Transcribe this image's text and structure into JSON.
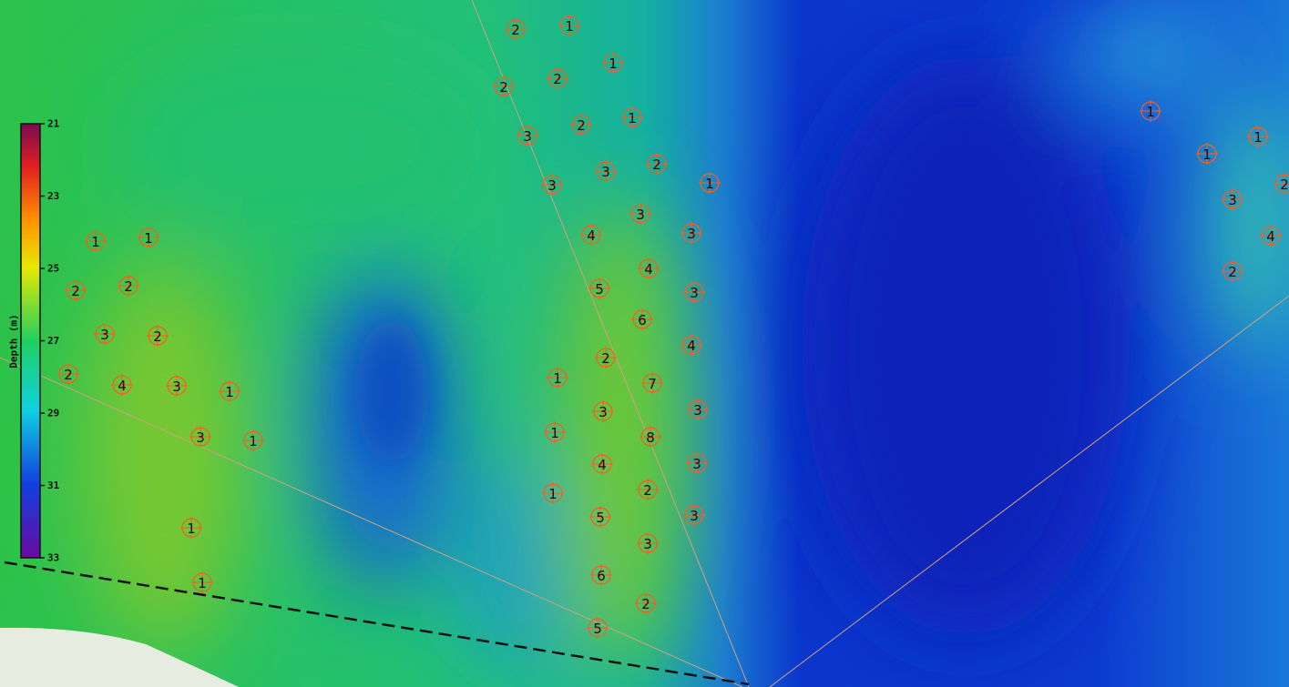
{
  "colorbar": {
    "title": "Depth (m)",
    "range": [
      21,
      33
    ],
    "ticks": [
      21,
      23,
      25,
      27,
      29,
      31,
      33
    ]
  },
  "markers": [
    "1",
    "1",
    "2",
    "2",
    "3",
    "2",
    "2",
    "4",
    "3",
    "1",
    "3",
    "1",
    "1",
    "1",
    "2",
    "1",
    "1",
    "2",
    "2",
    "1",
    "2",
    "3",
    "2",
    "3",
    "3",
    "1",
    "3",
    "4",
    "3",
    "4",
    "5",
    "3",
    "6",
    "4",
    "2",
    "1",
    "7",
    "3",
    "3",
    "1",
    "8",
    "4",
    "3",
    "1",
    "2",
    "5",
    "3",
    "3",
    "6",
    "2",
    "5",
    "1",
    "1",
    "1",
    "3",
    "2",
    "4",
    "2"
  ]
}
